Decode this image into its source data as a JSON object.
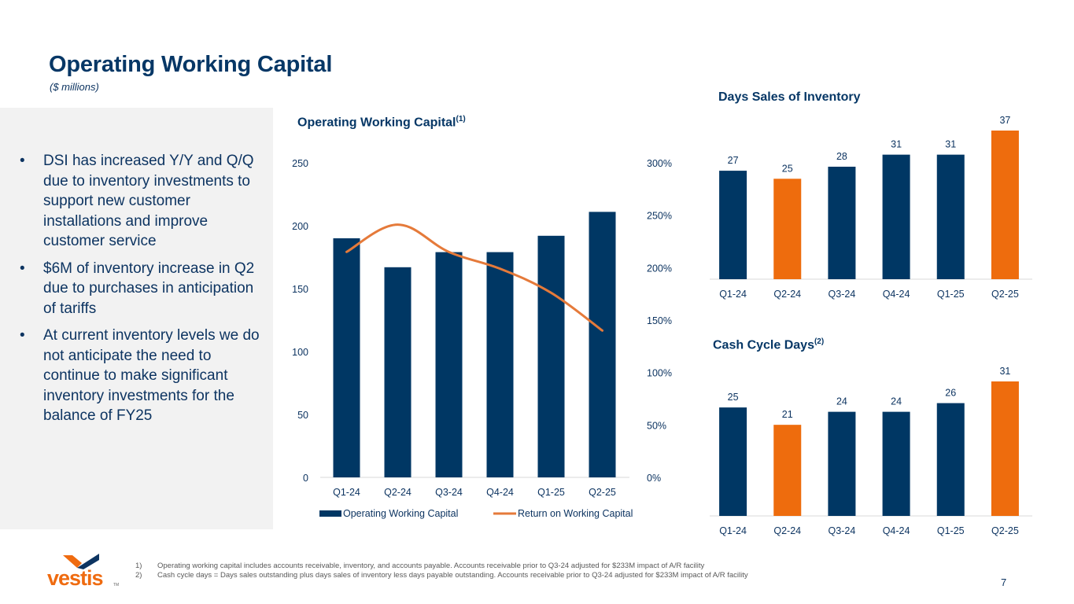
{
  "header": {
    "title": "Operating Working Capital",
    "subtitle": "($ millions)"
  },
  "bullets": [
    {
      "marker": "•",
      "text": "DSI has increased Y/Y and Q/Q due to inventory investments to support new customer installations and improve customer service"
    },
    {
      "marker": "•",
      "text": "$6M of inventory increase in Q2 due to purchases in anticipation of tariffs"
    },
    {
      "marker": "•",
      "text": "At current inventory levels we do not anticipate the need to continue to make significant inventory investments for the balance of FY25"
    }
  ],
  "colors": {
    "navy": "#003764",
    "orange": "#ee6c0d",
    "line_orange": "#e57a3a",
    "panel_gray": "#f2f2f2"
  },
  "chart_data": [
    {
      "type": "bar",
      "title": "Operating Working Capital",
      "title_sup": "(1)",
      "categories": [
        "Q1-24",
        "Q2-24",
        "Q3-24",
        "Q4-24",
        "Q1-25",
        "Q2-25"
      ],
      "series": [
        {
          "name": "Operating Working Capital",
          "type": "bar",
          "axis": "left",
          "values": [
            190,
            167,
            179,
            179,
            192,
            211
          ]
        },
        {
          "name": "Return on Working Capital",
          "type": "line",
          "axis": "right",
          "values": [
            215,
            241,
            215,
            199,
            176,
            140
          ]
        }
      ],
      "y_left": {
        "ylim": [
          0,
          250
        ],
        "ticks": [
          "0",
          "50",
          "100",
          "150",
          "200",
          "250"
        ]
      },
      "y_right": {
        "ylim": [
          0,
          300
        ],
        "ticks": [
          "0%",
          "50%",
          "100%",
          "150%",
          "200%",
          "250%",
          "300%"
        ]
      },
      "legend": {
        "placement": "bottom",
        "entries": [
          "Operating Working Capital",
          "Return on Working Capital"
        ]
      },
      "grid": false
    },
    {
      "type": "bar",
      "title": "Days Sales of Inventory",
      "title_sup": "",
      "categories": [
        "Q1-24",
        "Q2-24",
        "Q3-24",
        "Q4-24",
        "Q1-25",
        "Q2-25"
      ],
      "values": [
        27,
        25,
        28,
        31,
        31,
        37
      ],
      "labels": [
        "27",
        "25",
        "28",
        "31",
        "31",
        "37"
      ],
      "highlight": [
        false,
        true,
        false,
        false,
        false,
        true
      ],
      "ylim": [
        0,
        37
      ]
    },
    {
      "type": "bar",
      "title": "Cash Cycle Days",
      "title_sup": "(2)",
      "categories": [
        "Q1-24",
        "Q2-24",
        "Q3-24",
        "Q4-24",
        "Q1-25",
        "Q2-25"
      ],
      "values": [
        25,
        21,
        24,
        24,
        26,
        31
      ],
      "labels": [
        "25",
        "21",
        "24",
        "24",
        "26",
        "31"
      ],
      "highlight": [
        false,
        true,
        false,
        false,
        false,
        true
      ],
      "ylim": [
        0,
        31
      ]
    }
  ],
  "footnotes": [
    {
      "num": "1)",
      "text": "Operating working capital includes accounts receivable, inventory, and accounts payable. Accounts receivable prior to Q3-24 adjusted for $233M impact of A/R facility"
    },
    {
      "num": "2)",
      "text": "Cash cycle days = Days sales outstanding plus days sales of inventory less days payable outstanding. Accounts receivable prior to Q3-24 adjusted for $233M impact of A/R facility"
    }
  ],
  "logo": {
    "text": "vestis",
    "tm": "TM"
  },
  "page_number": "7"
}
